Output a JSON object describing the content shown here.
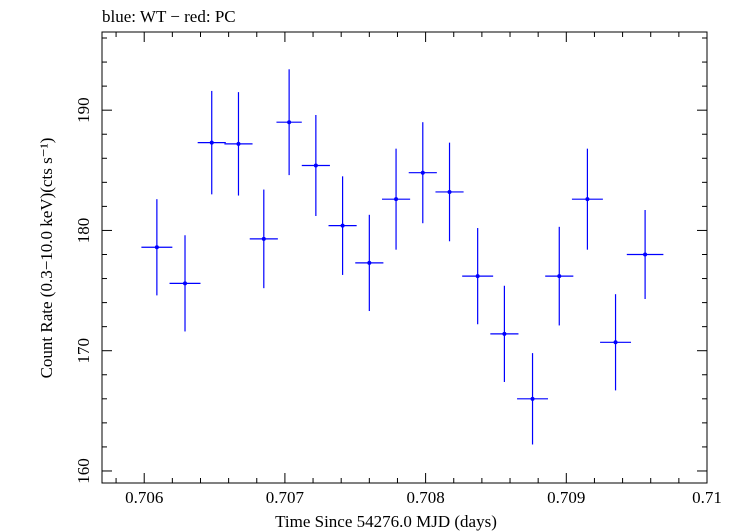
{
  "chart_data": {
    "type": "scatter",
    "title": "blue: WT − red: PC",
    "xlabel": "Time Since 54276.0 MJD (days)",
    "ylabel": "Count Rate (0.3−10.0 keV)(cts s⁻¹)",
    "xlim": [
      0.7057,
      0.71
    ],
    "ylim": [
      159,
      196.5
    ],
    "x_ticks": [
      "0.706",
      "0.707",
      "0.708",
      "0.709",
      "0.71"
    ],
    "y_ticks": [
      "160",
      "170",
      "180",
      "190"
    ],
    "grid": false,
    "series": [
      {
        "color": "#0000ff",
        "points": [
          {
            "x": 0.70609,
            "y": 178.6,
            "xerr": 0.00011,
            "yerr_lo": 4.0,
            "yerr_hi": 4.0
          },
          {
            "x": 0.70629,
            "y": 175.6,
            "xerr": 0.00011,
            "yerr_lo": 4.0,
            "yerr_hi": 4.0
          },
          {
            "x": 0.70648,
            "y": 187.3,
            "xerr": 0.0001,
            "yerr_lo": 4.3,
            "yerr_hi": 4.3
          },
          {
            "x": 0.70667,
            "y": 187.2,
            "xerr": 0.0001,
            "yerr_lo": 4.3,
            "yerr_hi": 4.3
          },
          {
            "x": 0.70685,
            "y": 179.3,
            "xerr": 0.0001,
            "yerr_lo": 4.1,
            "yerr_hi": 4.1
          },
          {
            "x": 0.70703,
            "y": 189.0,
            "xerr": 9e-05,
            "yerr_lo": 4.4,
            "yerr_hi": 4.4
          },
          {
            "x": 0.70722,
            "y": 185.4,
            "xerr": 0.0001,
            "yerr_lo": 4.2,
            "yerr_hi": 4.2
          },
          {
            "x": 0.70741,
            "y": 180.4,
            "xerr": 0.0001,
            "yerr_lo": 4.1,
            "yerr_hi": 4.1
          },
          {
            "x": 0.7076,
            "y": 177.3,
            "xerr": 0.0001,
            "yerr_lo": 4.0,
            "yerr_hi": 4.0
          },
          {
            "x": 0.70779,
            "y": 182.6,
            "xerr": 0.0001,
            "yerr_lo": 4.2,
            "yerr_hi": 4.2
          },
          {
            "x": 0.70798,
            "y": 184.8,
            "xerr": 0.0001,
            "yerr_lo": 4.2,
            "yerr_hi": 4.2
          },
          {
            "x": 0.70817,
            "y": 183.2,
            "xerr": 0.0001,
            "yerr_lo": 4.1,
            "yerr_hi": 4.1
          },
          {
            "x": 0.70837,
            "y": 176.2,
            "xerr": 0.00011,
            "yerr_lo": 4.0,
            "yerr_hi": 4.0
          },
          {
            "x": 0.70856,
            "y": 171.4,
            "xerr": 0.0001,
            "yerr_lo": 4.0,
            "yerr_hi": 4.0
          },
          {
            "x": 0.70876,
            "y": 166.0,
            "xerr": 0.00011,
            "yerr_lo": 3.8,
            "yerr_hi": 3.8
          },
          {
            "x": 0.70895,
            "y": 176.2,
            "xerr": 0.0001,
            "yerr_lo": 4.1,
            "yerr_hi": 4.1
          },
          {
            "x": 0.70915,
            "y": 182.6,
            "xerr": 0.00011,
            "yerr_lo": 4.2,
            "yerr_hi": 4.2
          },
          {
            "x": 0.70935,
            "y": 170.7,
            "xerr": 0.00011,
            "yerr_lo": 4.0,
            "yerr_hi": 4.0
          },
          {
            "x": 0.70956,
            "y": 178.0,
            "xerr": 0.00013,
            "yerr_lo": 3.7,
            "yerr_hi": 3.7
          }
        ]
      }
    ]
  }
}
